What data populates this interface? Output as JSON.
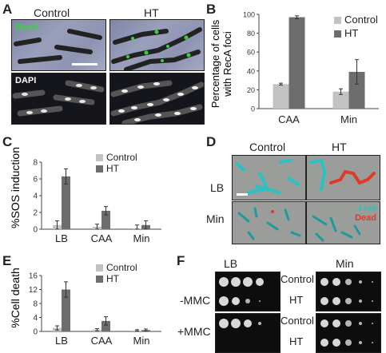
{
  "panels": {
    "A": {
      "label": "A",
      "col_control": "Control",
      "col_ht": "HT",
      "recA_label": "RecA",
      "dapi_label": "DAPI"
    },
    "B": {
      "label": "B"
    },
    "C": {
      "label": "C"
    },
    "D": {
      "label": "D",
      "col_control": "Control",
      "col_ht": "HT",
      "row_lb": "LB",
      "row_min": "Min",
      "live_label": "Live",
      "dead_label": "Dead"
    },
    "E": {
      "label": "E"
    },
    "F": {
      "label": "F",
      "col_lb": "LB",
      "col_min": "Min",
      "row_minus": "-MMC",
      "row_plus": "+MMC",
      "control_1": "Control",
      "ht_1": "HT",
      "control_2": "Control",
      "ht_2": "HT"
    }
  },
  "colors": {
    "control": "#c2c2c2",
    "ht": "#6d6d6d",
    "recA": "#39d23a",
    "live": "#27c2c2",
    "dead": "#e03a2a"
  },
  "chart_data": [
    {
      "panel": "B",
      "type": "bar",
      "categories": [
        "CAA",
        "Min"
      ],
      "series": [
        {
          "name": "Control",
          "values": [
            26,
            18
          ],
          "errors": [
            1,
            3
          ]
        },
        {
          "name": "HT",
          "values": [
            97,
            39
          ],
          "errors": [
            1.5,
            13
          ]
        }
      ],
      "ylabel": "Percentage of cells with RecA foci",
      "ylim": [
        0,
        100
      ],
      "yticks": [
        0,
        20,
        40,
        60,
        80,
        100
      ],
      "legend": "top-right"
    },
    {
      "panel": "C",
      "type": "bar",
      "categories": [
        "LB",
        "CAA",
        "Min"
      ],
      "series": [
        {
          "name": "Control",
          "values": [
            0.5,
            0.3,
            0.1
          ],
          "errors": [
            0.5,
            0.3,
            0.4
          ]
        },
        {
          "name": "HT",
          "values": [
            6.3,
            2.2,
            0.5
          ],
          "errors": [
            0.9,
            0.5,
            0.5
          ]
        }
      ],
      "ylabel": "%SOS induction",
      "ylim": [
        0,
        8
      ],
      "yticks": [
        0,
        2,
        4,
        6,
        8
      ],
      "legend": "top-right"
    },
    {
      "panel": "E",
      "type": "bar",
      "categories": [
        "LB",
        "CAA",
        "Min"
      ],
      "series": [
        {
          "name": "Control",
          "values": [
            1,
            0.5,
            0.3
          ],
          "errors": [
            0.6,
            0.3,
            0.2
          ]
        },
        {
          "name": "HT",
          "values": [
            12,
            3,
            0.4
          ],
          "errors": [
            2.2,
            1.2,
            0.3
          ]
        }
      ],
      "ylabel": "%Cell death",
      "ylim": [
        0,
        16
      ],
      "yticks": [
        0,
        4,
        8,
        12,
        16
      ],
      "legend": "top-right"
    }
  ]
}
